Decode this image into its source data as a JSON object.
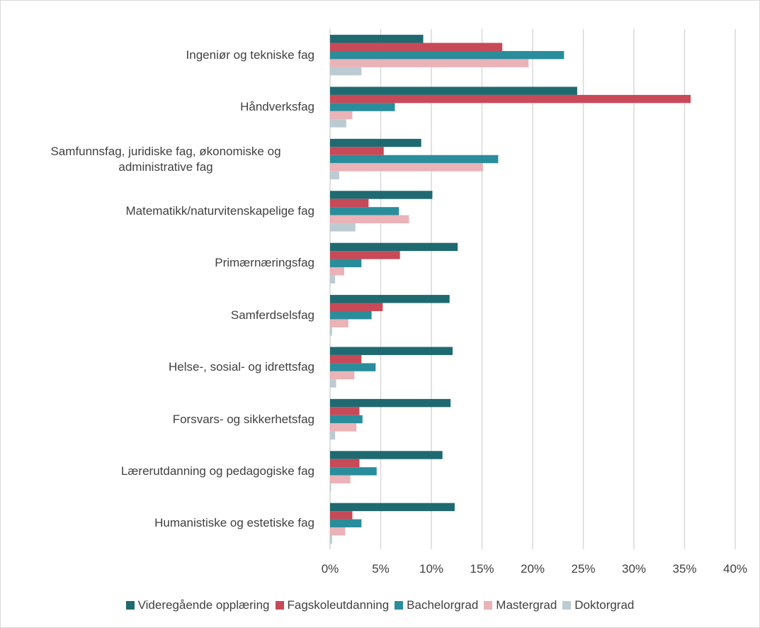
{
  "chart_data": {
    "type": "barh",
    "categories": [
      "Ingeniør og tekniske fag",
      "Håndverksfag",
      "Samfunnsfag, juridiske fag, økonomiske og administrative fag",
      "Matematikk/naturvitenskapelige fag",
      "Primærnæringsfag",
      "Samferdselsfag",
      "Helse-, sosial- og idrettsfag",
      "Forsvars- og sikkerhetsfag",
      "Lærerutdanning og pedagogiske fag",
      "Humanistiske og estetiske fag"
    ],
    "series": [
      {
        "name": "Videregående opplæring",
        "color": "#1f6a70",
        "values": [
          9.2,
          24.4,
          9.0,
          10.1,
          12.6,
          11.8,
          12.1,
          11.9,
          11.1,
          12.3
        ]
      },
      {
        "name": "Fagskoleutdanning",
        "color": "#c84957",
        "values": [
          17.0,
          35.6,
          5.3,
          3.8,
          6.9,
          5.2,
          3.1,
          2.9,
          2.9,
          2.2
        ]
      },
      {
        "name": "Bachelorgrad",
        "color": "#2a8d9b",
        "values": [
          23.1,
          6.4,
          16.6,
          6.8,
          3.1,
          4.1,
          4.5,
          3.2,
          4.6,
          3.1
        ]
      },
      {
        "name": "Mastergrad",
        "color": "#e9b3b8",
        "values": [
          19.6,
          2.2,
          15.1,
          7.8,
          1.4,
          1.8,
          2.4,
          2.6,
          2.0,
          1.5
        ]
      },
      {
        "name": "Doktorgrad",
        "color": "#bccbd2",
        "values": [
          3.1,
          1.6,
          0.9,
          2.5,
          0.5,
          0.2,
          0.6,
          0.5,
          0.1,
          0.2
        ]
      }
    ],
    "xlim": [
      0,
      40
    ],
    "xticks": [
      {
        "value": 0,
        "label": "0%"
      },
      {
        "value": 5,
        "label": "5%"
      },
      {
        "value": 10,
        "label": "10%"
      },
      {
        "value": 15,
        "label": "15%"
      },
      {
        "value": 20,
        "label": "20%"
      },
      {
        "value": 25,
        "label": "25%"
      },
      {
        "value": 30,
        "label": "30%"
      },
      {
        "value": 35,
        "label": "35%"
      },
      {
        "value": 40,
        "label": "40%"
      }
    ],
    "grid": true,
    "legend": "bottom"
  }
}
